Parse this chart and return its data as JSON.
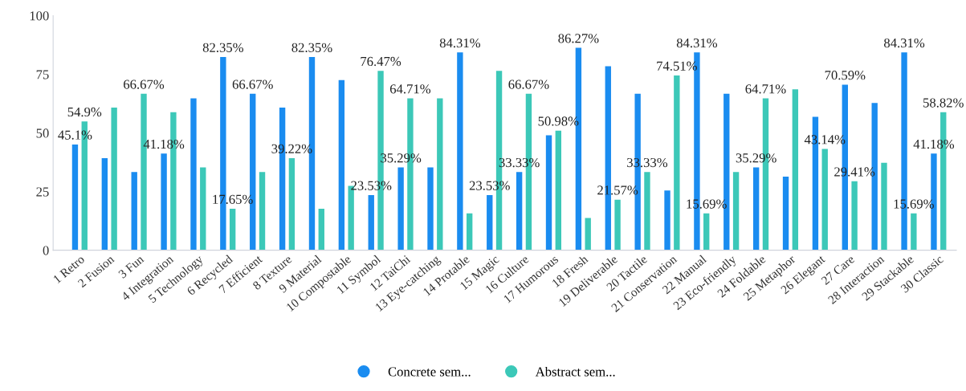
{
  "chart_data": {
    "type": "bar",
    "categories": [
      "1 Retro",
      "2 Fusion",
      "3 Fun",
      "4 Integration",
      "5 Technology",
      "6 Recycled",
      "7 Efficient",
      "8 Texture",
      "9 Material",
      "10 Compostable",
      "11 Symbol",
      "12 TaiChi",
      "13 Eye-catching",
      "14 Protable",
      "15 Magic",
      "16 Culture",
      "17 Humorous",
      "18 Fresh",
      "19 Deliverable",
      "20 Tactile",
      "21 Conservation",
      "22 Manual",
      "23 Eco-friendly",
      "24 Foldable",
      "25 Metaphor",
      "26 Elegant",
      "27 Care",
      "28 Interaction",
      "29 Stackable",
      "30 Classic"
    ],
    "series": [
      {
        "name": "Concrete sem...",
        "color": "#1a8cf0",
        "values": [
          45.1,
          39.22,
          33.33,
          41.18,
          64.71,
          82.35,
          66.67,
          60.78,
          82.35,
          72.55,
          23.53,
          35.29,
          35.29,
          84.31,
          23.53,
          33.33,
          49.02,
          86.27,
          78.43,
          66.67,
          25.49,
          84.31,
          66.67,
          35.29,
          31.37,
          56.86,
          70.59,
          62.75,
          84.31,
          41.18
        ],
        "value_labels": [
          "45.1%",
          null,
          null,
          "41.18%",
          null,
          "82.35%",
          "66.67%",
          null,
          "82.35%",
          null,
          "23.53%",
          "35.29%",
          null,
          "84.31%",
          "23.53%",
          "33.33%",
          null,
          "86.27%",
          null,
          null,
          null,
          "84.31%",
          null,
          "35.29%",
          null,
          null,
          "70.59%",
          null,
          "84.31%",
          "41.18%"
        ]
      },
      {
        "name": "Abstract sem...",
        "color": "#3cc8b8",
        "values": [
          54.9,
          60.78,
          66.67,
          58.82,
          35.29,
          17.65,
          33.33,
          39.22,
          17.65,
          27.45,
          76.47,
          64.71,
          64.71,
          15.69,
          76.47,
          66.67,
          50.98,
          13.73,
          21.57,
          33.33,
          74.51,
          15.69,
          33.33,
          64.71,
          68.63,
          43.14,
          29.41,
          37.25,
          15.69,
          58.82
        ],
        "value_labels": [
          "54.9%",
          null,
          "66.67%",
          null,
          null,
          "17.65%",
          null,
          "39.22%",
          null,
          null,
          "76.47%",
          "64.71%",
          null,
          null,
          null,
          "66.67%",
          "50.98%",
          null,
          "21.57%",
          "33.33%",
          "74.51%",
          "15.69%",
          null,
          "64.71%",
          null,
          "43.14%",
          "29.41%",
          null,
          "15.69%",
          "58.82%"
        ]
      }
    ],
    "ylim": [
      0,
      100
    ],
    "yticks": [
      0,
      25,
      50,
      75,
      100
    ],
    "grid": false,
    "legend": "bottom"
  }
}
